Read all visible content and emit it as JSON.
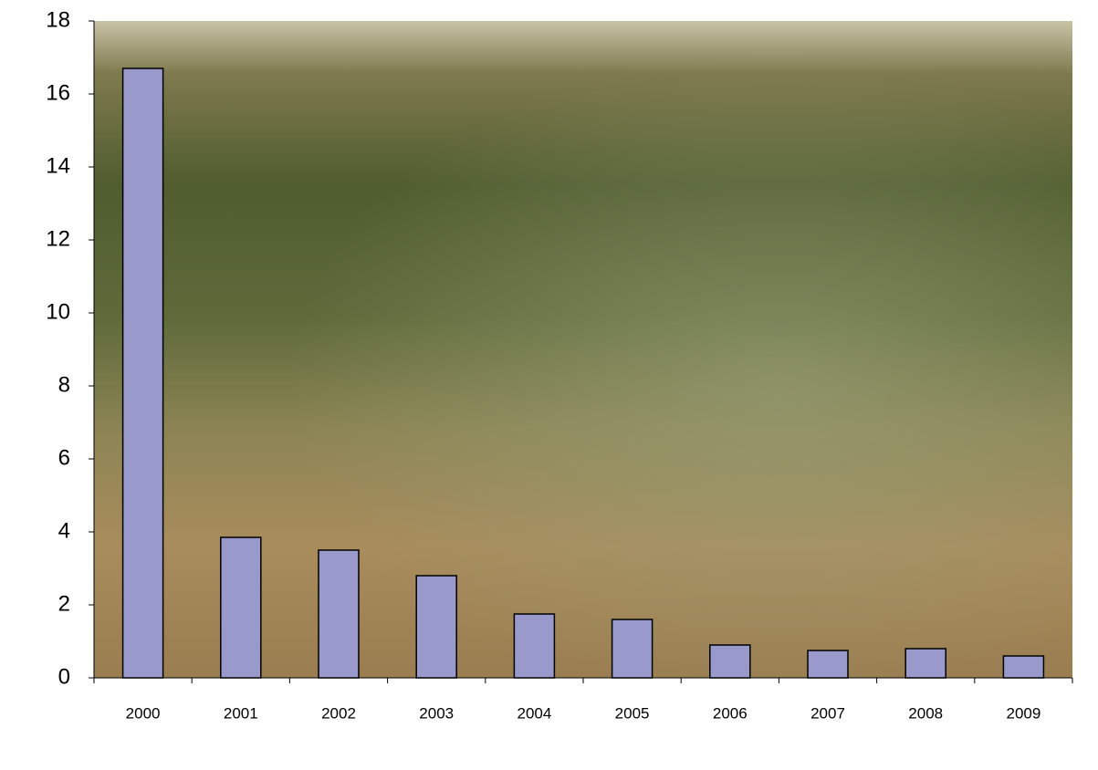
{
  "chart_data": {
    "type": "bar",
    "categories": [
      "2000",
      "2001",
      "2002",
      "2003",
      "2004",
      "2005",
      "2006",
      "2007",
      "2008",
      "2009"
    ],
    "values": [
      16.7,
      3.85,
      3.5,
      2.8,
      1.75,
      1.6,
      0.9,
      0.75,
      0.8,
      0.6
    ],
    "color": "#9999cc",
    "ylim": [
      0,
      18
    ],
    "yticks": [
      0,
      2,
      4,
      6,
      8,
      10,
      12,
      14,
      16,
      18
    ]
  }
}
